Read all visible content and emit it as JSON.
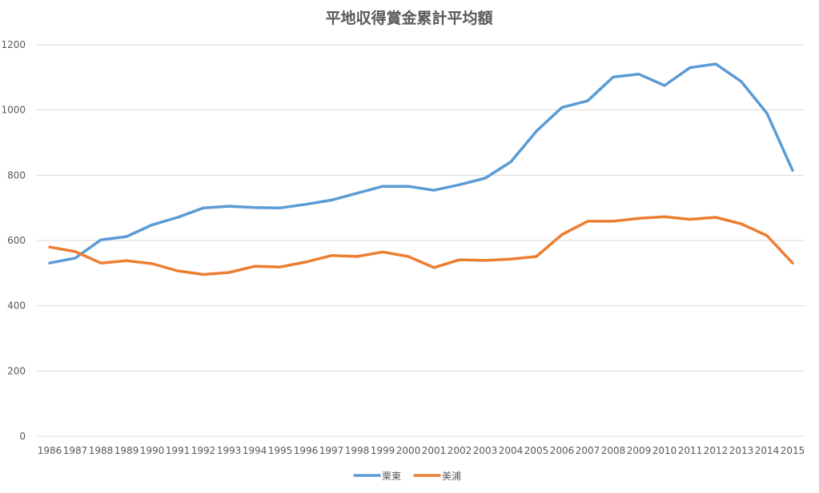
{
  "chart_data": {
    "type": "line",
    "title": "平地収得賞金累計平均額",
    "xlabel": "",
    "ylabel": "",
    "categories": [
      "1986",
      "1987",
      "1988",
      "1989",
      "1990",
      "1991",
      "1992",
      "1993",
      "1994",
      "1995",
      "1996",
      "1997",
      "1998",
      "1999",
      "2000",
      "2001",
      "2002",
      "2003",
      "2004",
      "2005",
      "2006",
      "2007",
      "2008",
      "2009",
      "2010",
      "2011",
      "2012",
      "2013",
      "2014",
      "2015"
    ],
    "yticks": [
      "0",
      "200",
      "400",
      "600",
      "800",
      "1000",
      "1200"
    ],
    "ylim": [
      0,
      1200
    ],
    "grid": true,
    "legend_position": "bottom",
    "series": [
      {
        "name": "栗東",
        "color": "#5b9bd5",
        "values": [
          531,
          546,
          602,
          612,
          648,
          671,
          700,
          705,
          701,
          700,
          711,
          724,
          745,
          766,
          766,
          754,
          771,
          791,
          841,
          935,
          1008,
          1028,
          1101,
          1110,
          1075,
          1130,
          1141,
          1087,
          990,
          815
        ]
      },
      {
        "name": "美浦",
        "color": "#ed7d31",
        "values": [
          580,
          566,
          531,
          538,
          529,
          507,
          496,
          502,
          521,
          519,
          534,
          554,
          551,
          565,
          551,
          517,
          541,
          539,
          543,
          551,
          618,
          659,
          659,
          668,
          673,
          665,
          671,
          651,
          615,
          531
        ]
      }
    ]
  }
}
